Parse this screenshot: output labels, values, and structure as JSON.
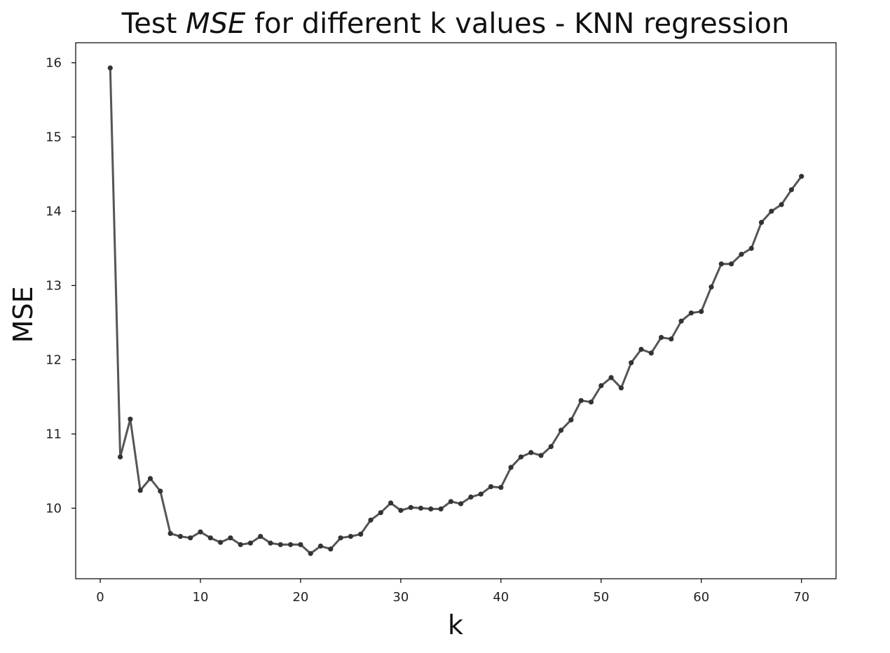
{
  "chart_data": {
    "type": "line",
    "title_parts": [
      "Test ",
      "MSE",
      " for different k values - KNN regression"
    ],
    "xlabel": "k",
    "ylabel": "MSE",
    "xlim": [
      -2.45,
      73.45
    ],
    "ylim": [
      9.05,
      16.27
    ],
    "x_ticks": [
      0,
      10,
      20,
      30,
      40,
      50,
      60,
      70
    ],
    "y_ticks": [
      10,
      11,
      12,
      13,
      14,
      15,
      16
    ],
    "grid": false,
    "line_color": "#555555",
    "marker_color": "#333333",
    "series": [
      {
        "x": [
          1,
          2,
          3,
          4,
          5,
          6,
          7,
          8,
          9,
          10,
          11,
          12,
          13,
          14,
          15,
          16,
          17,
          18,
          19,
          20,
          21,
          22,
          23,
          24,
          25,
          26,
          27,
          28,
          29,
          30,
          31,
          32,
          33,
          34,
          35,
          36,
          37,
          38,
          39,
          40,
          41,
          42,
          43,
          44,
          45,
          46,
          47,
          48,
          49,
          50,
          51,
          52,
          53,
          54,
          55,
          56,
          57,
          58,
          59,
          60,
          61,
          62,
          63,
          64,
          65,
          66,
          67,
          68,
          69,
          70
        ],
        "values": [
          15.93,
          10.69,
          11.2,
          10.24,
          10.4,
          10.23,
          9.66,
          9.62,
          9.6,
          9.68,
          9.6,
          9.54,
          9.6,
          9.51,
          9.53,
          9.62,
          9.53,
          9.51,
          9.51,
          9.51,
          9.39,
          9.49,
          9.45,
          9.6,
          9.62,
          9.65,
          9.84,
          9.94,
          10.07,
          9.97,
          10.01,
          10.0,
          9.99,
          9.99,
          10.09,
          10.06,
          10.15,
          10.19,
          10.29,
          10.28,
          10.55,
          10.69,
          10.75,
          10.71,
          10.83,
          11.05,
          11.19,
          11.45,
          11.43,
          11.65,
          11.76,
          11.62,
          11.96,
          12.14,
          12.09,
          12.3,
          12.28,
          12.52,
          12.63,
          12.65,
          12.98,
          13.29,
          13.29,
          13.42,
          13.5,
          13.85,
          14.0,
          14.09,
          14.29,
          14.47
        ]
      }
    ]
  }
}
